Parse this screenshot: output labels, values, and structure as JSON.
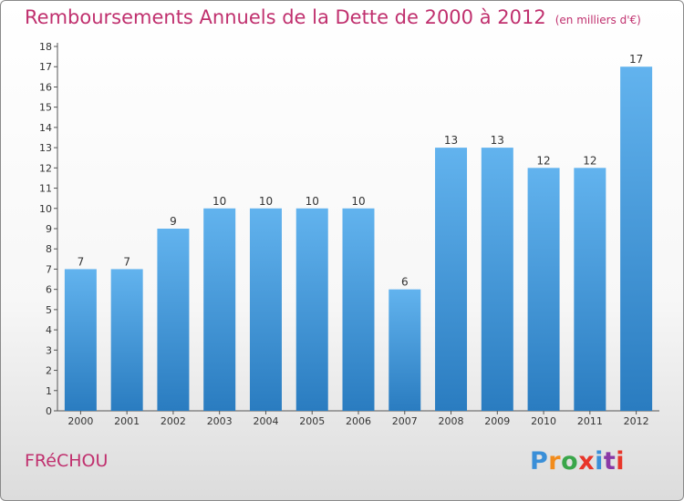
{
  "title": "Remboursements Annuels de la Dette de 2000 à 2012",
  "subtitle": "(en milliers d'€)",
  "commune": "FRéCHOU",
  "brand": {
    "letters": [
      "P",
      "r",
      "o",
      "x",
      "i",
      "t",
      "i"
    ],
    "colors": [
      "#3a8fd8",
      "#f28c1c",
      "#3aa64a",
      "#e8362a",
      "#3a8fd8",
      "#8a3aa6",
      "#e8362a"
    ]
  },
  "colors": {
    "title": "#c0306e",
    "bar_top": "#62b3ee",
    "bar_bottom": "#2a7cc0",
    "axis": "#555555"
  },
  "chart_data": {
    "type": "bar",
    "title": "Remboursements Annuels de la Dette de 2000 à 2012",
    "subtitle": "(en milliers d'€)",
    "categories": [
      "2000",
      "2001",
      "2002",
      "2003",
      "2004",
      "2005",
      "2006",
      "2007",
      "2008",
      "2009",
      "2010",
      "2011",
      "2012"
    ],
    "values": [
      7,
      7,
      9,
      10,
      10,
      10,
      10,
      6,
      13,
      13,
      12,
      12,
      17
    ],
    "ylim": [
      0,
      18
    ],
    "yticks": [
      0,
      1,
      2,
      3,
      4,
      5,
      6,
      7,
      8,
      9,
      10,
      11,
      12,
      13,
      14,
      15,
      16,
      17,
      18
    ],
    "grid": false,
    "data_labels": true
  }
}
